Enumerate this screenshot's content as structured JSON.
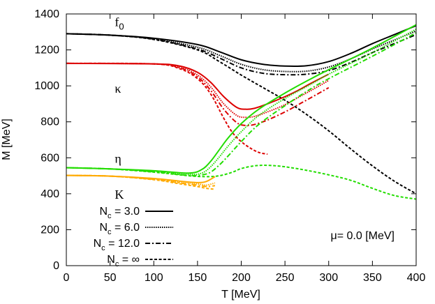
{
  "chart_data": {
    "type": "line",
    "xlabel": "T [MeV]",
    "ylabel": "M [MeV]",
    "xlim": [
      0,
      400
    ],
    "ylim": [
      0,
      1400
    ],
    "xticks": [
      0,
      50,
      100,
      150,
      200,
      250,
      300,
      350,
      400
    ],
    "yticks": [
      0,
      200,
      400,
      600,
      800,
      1000,
      1200,
      1400
    ],
    "grid": false,
    "legend_position": "bottom-left",
    "annotation": "μ= 0.0 [MeV]",
    "curve_labels": [
      {
        "text": "f",
        "sub": "0",
        "x": 25,
        "y": 1355
      },
      {
        "text": "κ",
        "x": 25,
        "y": 985
      },
      {
        "text": "η",
        "x": 25,
        "y": 595
      },
      {
        "text": "K",
        "x": 25,
        "y": 395
      }
    ],
    "legend": [
      {
        "text": "N",
        "sub": "c",
        "rest": " = 3.0",
        "style": "solid"
      },
      {
        "text": "N",
        "sub": "c",
        "rest": " = 6.0",
        "style": "dotted"
      },
      {
        "text": "N",
        "sub": "c",
        "rest": " = 12.0",
        "style": "dashdot"
      },
      {
        "text": "N",
        "sub": "c",
        "rest": " = ∞",
        "style": "dashed"
      }
    ],
    "series": [
      {
        "color": "#000000",
        "style": "solid",
        "x": [
          0,
          50,
          100,
          150,
          175,
          200,
          225,
          250,
          275,
          300,
          325,
          350,
          375,
          400
        ],
        "y": [
          1290,
          1282,
          1265,
          1230,
          1190,
          1145,
          1120,
          1110,
          1112,
          1135,
          1180,
          1235,
          1285,
          1335
        ]
      },
      {
        "color": "#000000",
        "style": "dotted",
        "x": [
          0,
          50,
          100,
          150,
          175,
          200,
          225,
          250,
          275,
          300,
          325,
          350,
          375,
          400
        ],
        "y": [
          1290,
          1282,
          1262,
          1215,
          1170,
          1120,
          1090,
          1080,
          1082,
          1105,
          1150,
          1205,
          1255,
          1305
        ]
      },
      {
        "color": "#000000",
        "style": "dashdot",
        "x": [
          0,
          50,
          100,
          150,
          175,
          200,
          225,
          250,
          275,
          300,
          325,
          350,
          375,
          400
        ],
        "y": [
          1290,
          1282,
          1260,
          1205,
          1155,
          1100,
          1070,
          1062,
          1065,
          1085,
          1130,
          1185,
          1235,
          1285
        ]
      },
      {
        "color": "#000000",
        "style": "dashed",
        "x": [
          0,
          50,
          100,
          150,
          175,
          200,
          225,
          250,
          275,
          300,
          325,
          350,
          375,
          400
        ],
        "y": [
          1290,
          1282,
          1258,
          1200,
          1135,
          1060,
          990,
          920,
          840,
          750,
          650,
          555,
          470,
          400
        ]
      },
      {
        "color": "#dd0000",
        "style": "solid",
        "x": [
          0,
          100,
          130,
          150,
          165,
          180,
          195,
          205,
          215,
          230,
          250,
          265,
          280,
          300
        ],
        "y": [
          1125,
          1122,
          1110,
          1075,
          1020,
          940,
          880,
          870,
          875,
          900,
          940,
          975,
          1015,
          1065
        ]
      },
      {
        "color": "#dd0000",
        "style": "dotted",
        "x": [
          0,
          100,
          130,
          150,
          165,
          180,
          195,
          205,
          215,
          230,
          250,
          265,
          280,
          300
        ],
        "y": [
          1125,
          1122,
          1105,
          1060,
          995,
          900,
          835,
          825,
          830,
          855,
          895,
          935,
          975,
          1030
        ]
      },
      {
        "color": "#dd0000",
        "style": "dashdot",
        "x": [
          0,
          100,
          130,
          150,
          165,
          180,
          195,
          205,
          215,
          230,
          250,
          265,
          280,
          300
        ],
        "y": [
          1125,
          1122,
          1100,
          1050,
          975,
          870,
          795,
          780,
          785,
          810,
          855,
          895,
          935,
          990
        ]
      },
      {
        "color": "#dd0000",
        "style": "dashed",
        "x": [
          0,
          100,
          130,
          150,
          165,
          180,
          190,
          200,
          210,
          220,
          230
        ],
        "y": [
          1125,
          1122,
          1095,
          1040,
          955,
          820,
          740,
          690,
          655,
          630,
          620
        ]
      },
      {
        "color": "#22dd00",
        "style": "solid",
        "x": [
          0,
          50,
          100,
          140,
          155,
          165,
          175,
          185,
          200,
          220,
          250,
          280,
          300,
          350,
          400
        ],
        "y": [
          545,
          538,
          528,
          515,
          535,
          580,
          645,
          710,
          790,
          870,
          960,
          1040,
          1090,
          1210,
          1340
        ]
      },
      {
        "color": "#22dd00",
        "style": "dotted",
        "x": [
          0,
          50,
          100,
          140,
          155,
          165,
          175,
          185,
          200,
          220,
          250,
          280,
          300,
          350,
          400
        ],
        "y": [
          545,
          538,
          525,
          508,
          515,
          550,
          605,
          665,
          745,
          835,
          930,
          1010,
          1065,
          1185,
          1315
        ]
      },
      {
        "color": "#22dd00",
        "style": "dashdot",
        "x": [
          0,
          50,
          100,
          140,
          155,
          165,
          175,
          185,
          200,
          220,
          250,
          280,
          300,
          350,
          400
        ],
        "y": [
          545,
          538,
          522,
          502,
          505,
          520,
          560,
          610,
          690,
          785,
          890,
          985,
          1040,
          1165,
          1295
        ]
      },
      {
        "color": "#22dd00",
        "style": "dashed",
        "x": [
          0,
          50,
          100,
          140,
          160,
          175,
          190,
          200,
          215,
          230,
          250,
          275,
          300,
          325,
          350,
          375,
          400
        ],
        "y": [
          545,
          538,
          520,
          500,
          495,
          500,
          520,
          540,
          555,
          558,
          550,
          530,
          505,
          475,
          430,
          390,
          370
        ]
      },
      {
        "color": "#ffaa00",
        "style": "solid",
        "x": [
          0,
          50,
          100,
          130,
          150,
          160,
          170
        ],
        "y": [
          502,
          498,
          485,
          470,
          462,
          468,
          495
        ]
      },
      {
        "color": "#ffaa00",
        "style": "dotted",
        "x": [
          0,
          50,
          100,
          130,
          150,
          160,
          170
        ],
        "y": [
          502,
          498,
          482,
          465,
          455,
          448,
          460
        ]
      },
      {
        "color": "#ffaa00",
        "style": "dashdot",
        "x": [
          0,
          50,
          100,
          130,
          150,
          160,
          170
        ],
        "y": [
          502,
          498,
          480,
          460,
          448,
          440,
          445
        ]
      },
      {
        "color": "#ffaa00",
        "style": "dashed",
        "x": [
          0,
          50,
          100,
          130,
          150,
          160,
          170
        ],
        "y": [
          502,
          498,
          478,
          455,
          440,
          430,
          425
        ]
      }
    ]
  }
}
